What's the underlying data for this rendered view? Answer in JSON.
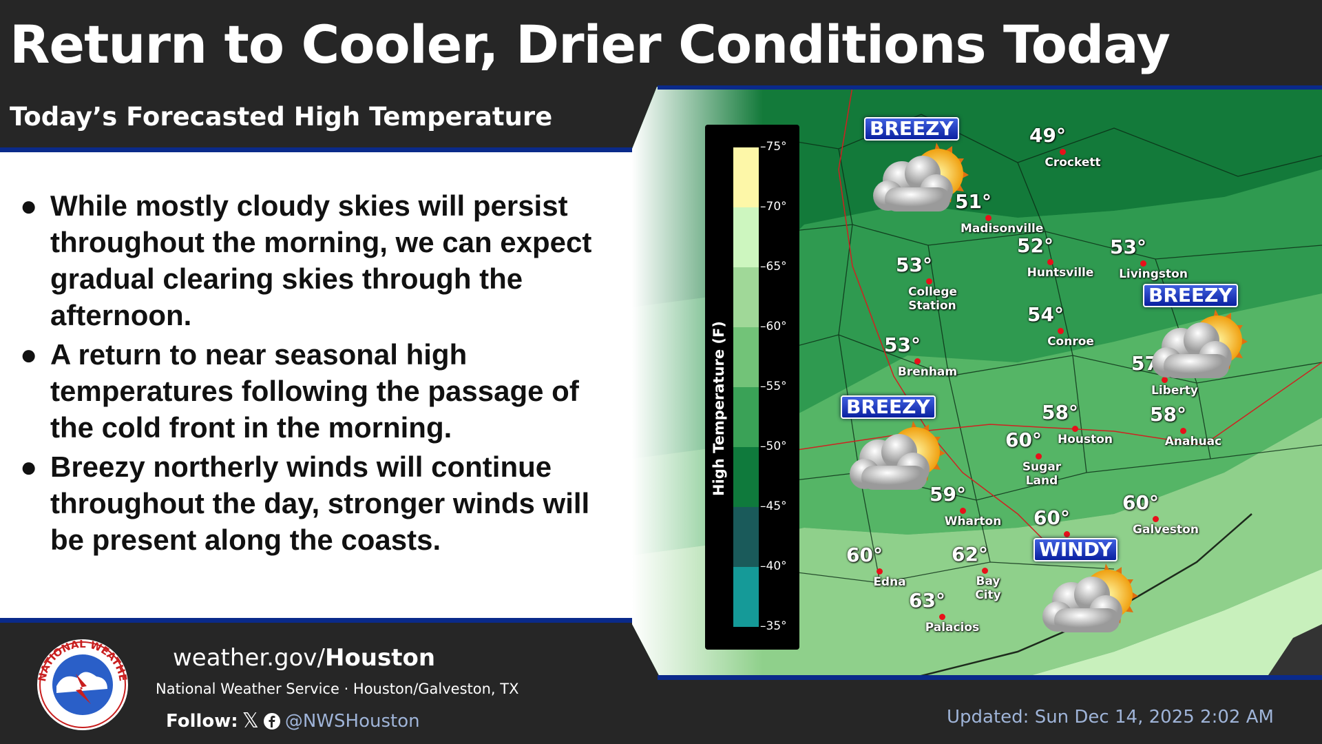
{
  "header": {
    "title": "Return to Cooler, Drier Conditions Today",
    "subtitle": "Today’s Forecasted High Temperature"
  },
  "bullets": [
    "While mostly cloudy skies will persist throughout the morning, we can expect gradual clearing skies through the afternoon.",
    "A return to near seasonal high temperatures following the passage of the cold front in the morning.",
    "Breezy northerly winds will continue throughout the day, stronger winds will be present along the coasts."
  ],
  "bullet_char": "●",
  "legend": {
    "title": "High Temperature (F)",
    "ticks": [
      "75°",
      "70°",
      "65°",
      "60°",
      "55°",
      "50°",
      "45°",
      "40°",
      "35°"
    ],
    "colors": [
      "#fdf7a8",
      "#cdf6bf",
      "#a0d898",
      "#72c378",
      "#3aa257",
      "#0f7a3c",
      "#1a5a5a",
      "#159a98"
    ]
  },
  "cities": [
    {
      "name": "Crockett",
      "temp": "49°"
    },
    {
      "name": "Madisonville",
      "temp": "51°"
    },
    {
      "name": "Huntsville",
      "temp": "52°"
    },
    {
      "name": "Livingston",
      "temp": "53°"
    },
    {
      "name": "College Station",
      "temp": "53°"
    },
    {
      "name": "Conroe",
      "temp": "54°"
    },
    {
      "name": "Brenham",
      "temp": "53°"
    },
    {
      "name": "Liberty",
      "temp": "57°"
    },
    {
      "name": "Houston",
      "temp": "58°"
    },
    {
      "name": "Anahuac",
      "temp": "58°"
    },
    {
      "name": "Sugar Land",
      "temp": "60°"
    },
    {
      "name": "Wharton",
      "temp": "59°"
    },
    {
      "name": "Galveston",
      "temp": "60°"
    },
    {
      "name": "",
      "temp": "60°"
    },
    {
      "name": "Edna",
      "temp": "60°"
    },
    {
      "name": "Bay City",
      "temp": "62°"
    },
    {
      "name": "Palacios",
      "temp": "63°"
    }
  ],
  "badges": [
    "BREEZY",
    "BREEZY",
    "BREEZY",
    "WINDY"
  ],
  "weather_icon": "partly-cloudy-icon",
  "footer": {
    "site_prefix": "weather.gov/",
    "site_bold": "Houston",
    "org": "National Weather Service · Houston/Galveston, TX",
    "follow": "Follow:",
    "handle": "@NWSHouston",
    "updated": "Updated: Sun Dec 14, 2025 2:02 AM",
    "logo_text": "NATIONAL WEATHER SERVICE"
  },
  "colors": {
    "header_bg": "#262626",
    "accent_blue": "#0a2a8a",
    "city_dot": "#e8101a"
  }
}
